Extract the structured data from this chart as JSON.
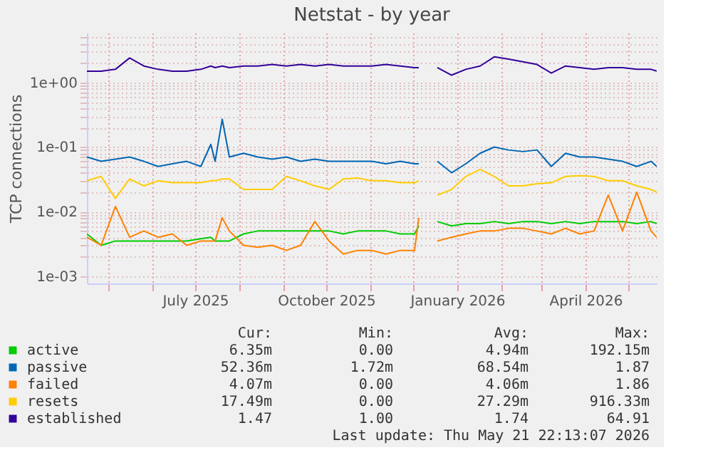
{
  "chart_data": {
    "type": "line",
    "title": "Netstat - by year",
    "ylabel": "TCP connections",
    "log": true,
    "grid": true,
    "legend": "bottom",
    "line_style": "solid",
    "marker": "none",
    "x": [
      "2025-04-16",
      "2025-04-26",
      "2025-05-06",
      "2025-05-16",
      "2025-05-26",
      "2025-06-05",
      "2025-06-15",
      "2025-06-25",
      "2025-07-05",
      "2025-07-12",
      "2025-07-15",
      "2025-07-20",
      "2025-07-25",
      "2025-08-04",
      "2025-08-14",
      "2025-08-24",
      "2025-09-03",
      "2025-09-13",
      "2025-09-23",
      "2025-10-03",
      "2025-10-13",
      "2025-10-23",
      "2025-11-02",
      "2025-11-12",
      "2025-11-22",
      "2025-12-02",
      "2025-12-05",
      "2025-12-10",
      "2025-12-18",
      "2025-12-28",
      "2026-01-07",
      "2026-01-17",
      "2026-01-27",
      "2026-02-06",
      "2026-02-16",
      "2026-02-26",
      "2026-03-08",
      "2026-03-18",
      "2026-03-28",
      "2026-04-07",
      "2026-04-17",
      "2026-04-27",
      "2026-05-07",
      "2026-05-17",
      "2026-05-21"
    ],
    "xlim": [
      "2025-04-16",
      "2026-05-21"
    ],
    "xticks": [
      {
        "value": "2025-05-01",
        "label": null
      },
      {
        "value": "2025-06-01",
        "label": null
      },
      {
        "value": "2025-07-01",
        "label": "July 2025"
      },
      {
        "value": "2025-08-01",
        "label": null
      },
      {
        "value": "2025-09-01",
        "label": null
      },
      {
        "value": "2025-10-01",
        "label": "October 2025"
      },
      {
        "value": "2025-11-01",
        "label": null
      },
      {
        "value": "2025-12-01",
        "label": null
      },
      {
        "value": "2026-01-01",
        "label": "January 2026"
      },
      {
        "value": "2026-02-01",
        "label": null
      },
      {
        "value": "2026-03-01",
        "label": null
      },
      {
        "value": "2026-04-01",
        "label": "April 2026"
      },
      {
        "value": "2026-05-01",
        "label": null
      }
    ],
    "ylim": [
      0.00077,
      5.9
    ],
    "yticks": [
      {
        "value": 0.001,
        "label": "1e-03"
      },
      {
        "value": 0.002,
        "label": null
      },
      {
        "value": 0.003,
        "label": null
      },
      {
        "value": 0.004,
        "label": null
      },
      {
        "value": 0.005,
        "label": null
      },
      {
        "value": 0.006,
        "label": null
      },
      {
        "value": 0.007,
        "label": null
      },
      {
        "value": 0.008,
        "label": null
      },
      {
        "value": 0.009,
        "label": null
      },
      {
        "value": 0.01,
        "label": "1e-02"
      },
      {
        "value": 0.02,
        "label": null
      },
      {
        "value": 0.03,
        "label": null
      },
      {
        "value": 0.04,
        "label": null
      },
      {
        "value": 0.05,
        "label": null
      },
      {
        "value": 0.06,
        "label": null
      },
      {
        "value": 0.07,
        "label": null
      },
      {
        "value": 0.08,
        "label": null
      },
      {
        "value": 0.09,
        "label": null
      },
      {
        "value": 0.1,
        "label": "1e-01"
      },
      {
        "value": 0.2,
        "label": null
      },
      {
        "value": 0.3,
        "label": null
      },
      {
        "value": 0.4,
        "label": null
      },
      {
        "value": 0.5,
        "label": null
      },
      {
        "value": 0.6,
        "label": null
      },
      {
        "value": 0.7,
        "label": null
      },
      {
        "value": 0.8,
        "label": null
      },
      {
        "value": 0.9,
        "label": null
      },
      {
        "value": 1,
        "label": "1e+00"
      },
      {
        "value": 2,
        "label": null
      },
      {
        "value": 3,
        "label": null
      },
      {
        "value": 4,
        "label": null
      },
      {
        "value": 5,
        "label": null
      }
    ],
    "series": [
      {
        "name": "active",
        "color": "#00cc00",
        "values": [
          0.0045,
          0.003,
          0.0035,
          0.0035,
          0.0035,
          0.0035,
          0.0035,
          0.0035,
          0.0038,
          0.004,
          0.0035,
          0.0035,
          0.0035,
          0.0045,
          0.005,
          0.005,
          0.005,
          0.005,
          0.005,
          0.005,
          0.0045,
          0.005,
          0.005,
          0.005,
          0.0045,
          0.0045,
          0.006,
          null,
          0.007,
          0.006,
          0.0065,
          0.0065,
          0.007,
          0.0065,
          0.007,
          0.007,
          0.0065,
          0.007,
          0.0065,
          0.007,
          0.007,
          0.007,
          0.0065,
          0.007,
          0.0065
        ]
      },
      {
        "name": "passive",
        "color": "#0066b3",
        "values": [
          0.07,
          0.06,
          0.065,
          0.07,
          0.06,
          0.05,
          0.055,
          0.06,
          0.05,
          0.11,
          0.06,
          0.27,
          0.07,
          0.08,
          0.07,
          0.065,
          0.07,
          0.06,
          0.065,
          0.06,
          0.06,
          0.06,
          0.06,
          0.055,
          0.06,
          0.055,
          0.055,
          null,
          0.06,
          0.04,
          0.055,
          0.08,
          0.1,
          0.09,
          0.085,
          0.09,
          0.05,
          0.08,
          0.07,
          0.07,
          0.065,
          0.06,
          0.05,
          0.06,
          0.05
        ]
      },
      {
        "name": "failed",
        "color": "#ff8000",
        "values": [
          0.004,
          0.003,
          0.012,
          0.004,
          0.005,
          0.004,
          0.0045,
          0.003,
          0.0035,
          0.0035,
          0.0035,
          0.008,
          0.005,
          0.003,
          0.0028,
          0.003,
          0.0025,
          0.003,
          0.007,
          0.0035,
          0.0022,
          0.0025,
          0.0025,
          0.0022,
          0.0025,
          0.0025,
          0.008,
          null,
          0.0035,
          0.004,
          0.0045,
          0.005,
          0.005,
          0.0055,
          0.0055,
          0.005,
          0.0045,
          0.0055,
          0.0045,
          0.005,
          0.018,
          0.005,
          0.02,
          0.005,
          0.004
        ]
      },
      {
        "name": "resets",
        "color": "#ffcc00",
        "values": [
          0.03,
          0.035,
          0.016,
          0.032,
          0.025,
          0.03,
          0.028,
          0.028,
          0.028,
          0.03,
          0.03,
          0.032,
          0.032,
          0.022,
          0.022,
          0.022,
          0.035,
          0.03,
          0.025,
          0.022,
          0.032,
          0.033,
          0.03,
          0.03,
          0.028,
          0.028,
          0.03,
          null,
          0.018,
          0.022,
          0.035,
          0.045,
          0.035,
          0.025,
          0.025,
          0.027,
          0.028,
          0.035,
          0.036,
          0.035,
          0.03,
          0.03,
          0.025,
          0.022,
          0.02
        ]
      },
      {
        "name": "established",
        "color": "#330099",
        "values": [
          1.5,
          1.5,
          1.6,
          2.4,
          1.8,
          1.6,
          1.5,
          1.5,
          1.6,
          1.8,
          1.7,
          1.8,
          1.7,
          1.8,
          1.8,
          1.9,
          1.8,
          1.9,
          1.8,
          1.9,
          1.8,
          1.8,
          1.8,
          1.9,
          1.8,
          1.7,
          1.7,
          null,
          1.7,
          1.3,
          1.6,
          1.8,
          2.5,
          2.3,
          2.1,
          1.9,
          1.4,
          1.8,
          1.7,
          1.6,
          1.7,
          1.7,
          1.6,
          1.6,
          1.5
        ]
      }
    ],
    "annotations": [
      "Cur:",
      "Min:",
      "Avg:",
      "Max:",
      "6.35m",
      "0.00",
      "4.94m",
      "192.15m",
      "52.36m",
      "1.72m",
      "68.54m",
      "1.87",
      "4.07m",
      "0.00",
      "4.06m",
      "1.86",
      "17.49m",
      "0.00",
      "27.29m",
      "916.33m",
      "1.47",
      "1.00",
      "1.74",
      "64.91",
      "Last update: Thu May 21 22:13:07 2026"
    ]
  }
}
